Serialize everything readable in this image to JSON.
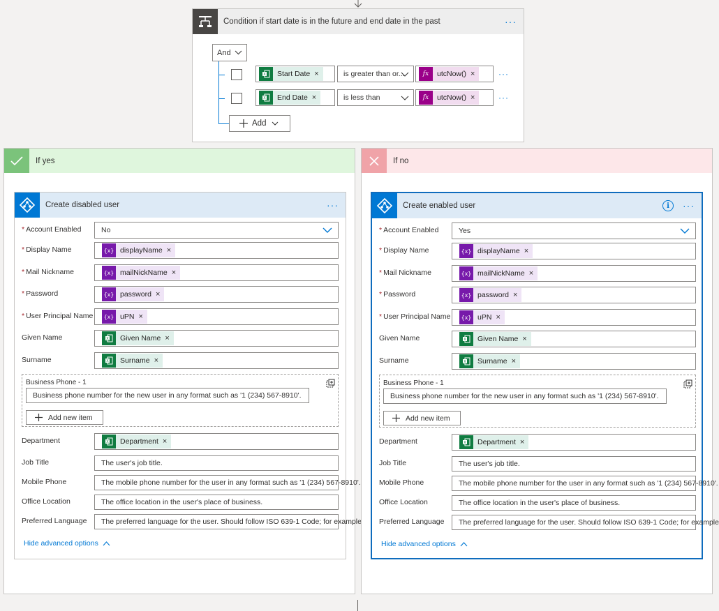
{
  "condition": {
    "title": "Condition if start date is in the future and end date in the past",
    "group_operator": "And",
    "rows": [
      {
        "left_token": "Start Date",
        "operator": "is greater than or...",
        "right_token": "utcNow()"
      },
      {
        "left_token": "End Date",
        "operator": "is less than",
        "right_token": "utcNow()"
      }
    ],
    "add_label": "Add"
  },
  "yes_branch": {
    "label": "If yes",
    "action": {
      "title": "Create disabled user",
      "account_enabled": "No"
    }
  },
  "no_branch": {
    "label": "If no",
    "action": {
      "title": "Create enabled user",
      "account_enabled": "Yes"
    }
  },
  "fields": {
    "account_enabled": "Account Enabled",
    "display_name": "Display Name",
    "mail_nickname": "Mail Nickname",
    "password": "Password",
    "upn": "User Principal Name",
    "given_name": "Given Name",
    "surname": "Surname",
    "business_phone": "Business Phone - 1",
    "department": "Department",
    "job_title": "Job Title",
    "mobile_phone": "Mobile Phone",
    "office_location": "Office Location",
    "preferred_language": "Preferred Language"
  },
  "tokens": {
    "display_name": "displayName",
    "mail_nickname": "mailNickName",
    "password": "password",
    "upn": "uPN",
    "given_name": "Given Name",
    "surname": "Surname",
    "department": "Department"
  },
  "placeholders": {
    "business_phone": "Business phone number for the new user in any format such as '1 (234) 567-8910'.",
    "job_title": "The user's job title.",
    "mobile_phone": "The mobile phone number for the user in any format such as '1 (234) 567-8910'.",
    "office_location": "The office location in the user's place of business.",
    "preferred_language": "The preferred language for the user. Should follow ISO 639-1 Code; for example"
  },
  "add_new_item": "Add new item",
  "hide_advanced": "Hide advanced options",
  "icons": {
    "condition": "condition-icon",
    "excel": "excel-icon",
    "variable": "variable-icon",
    "expression": "fx-icon",
    "azure_ad": "azure-ad-icon",
    "check": "check-icon",
    "close": "close-icon",
    "info": "info-icon"
  },
  "colors": {
    "accent": "#0078d4",
    "yes": "#7bc37b",
    "no": "#f0a3a8"
  }
}
